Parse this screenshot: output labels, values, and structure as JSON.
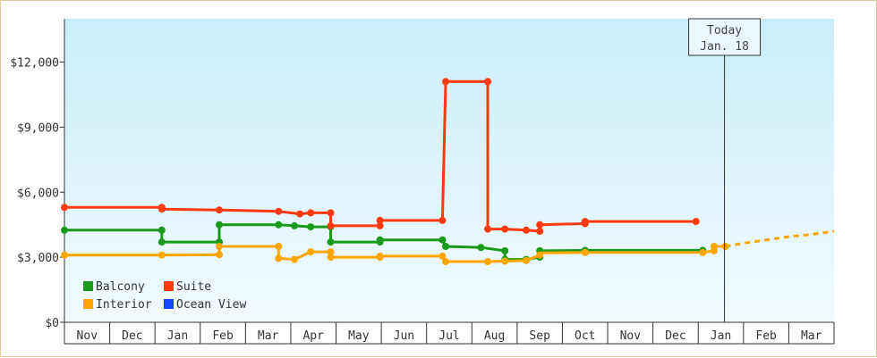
{
  "chart_data": {
    "type": "line",
    "title": "",
    "xlabel": "",
    "ylabel": "",
    "ylim": [
      0,
      14000
    ],
    "y_ticks": [
      {
        "value": 0,
        "label": "$0"
      },
      {
        "value": 3000,
        "label": "$3,000"
      },
      {
        "value": 6000,
        "label": "$6,000"
      },
      {
        "value": 9000,
        "label": "$9,000"
      },
      {
        "value": 12000,
        "label": "$12,000"
      }
    ],
    "x_unit": "months since Nov (first month on axis)",
    "months": [
      "Nov",
      "Dec",
      "Jan",
      "Feb",
      "Mar",
      "Apr",
      "May",
      "Jun",
      "Jul",
      "Aug",
      "Sep",
      "Oct",
      "Nov",
      "Dec",
      "Jan",
      "Feb",
      "Mar"
    ],
    "today": {
      "line1": "Today",
      "line2": "Jan. 18",
      "x": 14.58
    },
    "legend": {
      "placement": "bottom-left"
    },
    "series": [
      {
        "name": "Balcony",
        "color": "#1a9a1a",
        "points": [
          [
            0,
            4250
          ],
          [
            2.15,
            4250
          ],
          [
            2.15,
            3700
          ],
          [
            3.42,
            3700
          ],
          [
            3.42,
            4500
          ],
          [
            4.73,
            4500
          ],
          [
            5.08,
            4450
          ],
          [
            5.44,
            4400
          ],
          [
            5.88,
            4400
          ],
          [
            5.88,
            3700
          ],
          [
            6.97,
            3700
          ],
          [
            6.97,
            3800
          ],
          [
            8.35,
            3800
          ],
          [
            8.42,
            3500
          ],
          [
            9.2,
            3450
          ],
          [
            9.73,
            3300
          ],
          [
            9.73,
            2900
          ],
          [
            10.2,
            2900
          ],
          [
            10.5,
            3000
          ],
          [
            10.5,
            3300
          ],
          [
            11.5,
            3320
          ],
          [
            13.4,
            3320
          ],
          [
            14.1,
            3320
          ]
        ],
        "markers": [
          [
            0,
            4250
          ],
          [
            2.15,
            4250
          ],
          [
            2.15,
            3700
          ],
          [
            3.42,
            3700
          ],
          [
            3.42,
            4500
          ],
          [
            4.73,
            4500
          ],
          [
            5.08,
            4450
          ],
          [
            5.44,
            4400
          ],
          [
            5.88,
            4400
          ],
          [
            5.88,
            3700
          ],
          [
            6.97,
            3700
          ],
          [
            6.97,
            3800
          ],
          [
            8.35,
            3800
          ],
          [
            8.42,
            3500
          ],
          [
            9.2,
            3450
          ],
          [
            9.73,
            3300
          ],
          [
            9.73,
            2900
          ],
          [
            10.2,
            2900
          ],
          [
            10.5,
            3000
          ],
          [
            10.5,
            3300
          ],
          [
            11.5,
            3320
          ],
          [
            14.1,
            3320
          ]
        ]
      },
      {
        "name": "Suite",
        "color": "#ff3a10",
        "points": [
          [
            0,
            5300
          ],
          [
            2.15,
            5300
          ],
          [
            2.15,
            5220
          ],
          [
            3.42,
            5180
          ],
          [
            4.73,
            5120
          ],
          [
            5.2,
            5000
          ],
          [
            5.44,
            5050
          ],
          [
            5.88,
            5050
          ],
          [
            5.88,
            4450
          ],
          [
            6.97,
            4450
          ],
          [
            6.97,
            4700
          ],
          [
            8.35,
            4700
          ],
          [
            8.42,
            11100
          ],
          [
            9.35,
            11100
          ],
          [
            9.35,
            4300
          ],
          [
            9.73,
            4300
          ],
          [
            10.2,
            4250
          ],
          [
            10.5,
            4200
          ],
          [
            10.5,
            4500
          ],
          [
            11.5,
            4550
          ],
          [
            11.5,
            4650
          ],
          [
            13.95,
            4650
          ]
        ],
        "markers": [
          [
            0,
            5300
          ],
          [
            2.15,
            5300
          ],
          [
            2.15,
            5220
          ],
          [
            3.42,
            5180
          ],
          [
            4.73,
            5120
          ],
          [
            5.2,
            5000
          ],
          [
            5.44,
            5050
          ],
          [
            5.88,
            5050
          ],
          [
            5.88,
            4450
          ],
          [
            6.97,
            4450
          ],
          [
            6.97,
            4700
          ],
          [
            8.35,
            4700
          ],
          [
            8.42,
            11100
          ],
          [
            9.35,
            11100
          ],
          [
            9.35,
            4300
          ],
          [
            9.73,
            4300
          ],
          [
            10.2,
            4250
          ],
          [
            10.5,
            4200
          ],
          [
            10.5,
            4500
          ],
          [
            11.5,
            4550
          ],
          [
            11.5,
            4650
          ],
          [
            13.95,
            4650
          ]
        ]
      },
      {
        "name": "Interior",
        "color": "#ffa500",
        "points": [
          [
            0,
            3100
          ],
          [
            2.15,
            3100
          ],
          [
            3.42,
            3120
          ],
          [
            3.42,
            3500
          ],
          [
            4.73,
            3500
          ],
          [
            4.73,
            2950
          ],
          [
            5.08,
            2900
          ],
          [
            5.44,
            3250
          ],
          [
            5.88,
            3250
          ],
          [
            5.88,
            3000
          ],
          [
            6.97,
            3000
          ],
          [
            6.97,
            3050
          ],
          [
            8.35,
            3050
          ],
          [
            8.42,
            2800
          ],
          [
            9.35,
            2800
          ],
          [
            9.73,
            2820
          ],
          [
            10.2,
            2850
          ],
          [
            10.5,
            3100
          ],
          [
            10.5,
            3200
          ],
          [
            11.5,
            3220
          ],
          [
            14.1,
            3220
          ],
          [
            14.35,
            3300
          ],
          [
            14.35,
            3500
          ],
          [
            14.6,
            3500
          ]
        ],
        "markers": [
          [
            0,
            3100
          ],
          [
            2.15,
            3100
          ],
          [
            3.42,
            3120
          ],
          [
            3.42,
            3500
          ],
          [
            4.73,
            3500
          ],
          [
            4.73,
            2950
          ],
          [
            5.08,
            2900
          ],
          [
            5.44,
            3250
          ],
          [
            5.88,
            3250
          ],
          [
            5.88,
            3000
          ],
          [
            6.97,
            3000
          ],
          [
            6.97,
            3050
          ],
          [
            8.35,
            3050
          ],
          [
            8.42,
            2800
          ],
          [
            9.35,
            2800
          ],
          [
            9.73,
            2820
          ],
          [
            10.2,
            2850
          ],
          [
            10.5,
            3100
          ],
          [
            11.5,
            3220
          ],
          [
            14.1,
            3220
          ],
          [
            14.35,
            3300
          ],
          [
            14.35,
            3500
          ],
          [
            14.6,
            3500
          ]
        ],
        "projection": [
          [
            14.6,
            3500
          ],
          [
            15.0,
            3650
          ],
          [
            15.5,
            3800
          ],
          [
            16.0,
            3950
          ],
          [
            16.5,
            4050
          ],
          [
            17.0,
            4200
          ]
        ]
      },
      {
        "name": "Ocean View",
        "color": "#1446ff",
        "points": [],
        "markers": []
      }
    ]
  },
  "legend_items": [
    {
      "name": "Balcony",
      "color": "#1a9a1a"
    },
    {
      "name": "Suite",
      "color": "#ff3a10"
    },
    {
      "name": "Interior",
      "color": "#ffa500"
    },
    {
      "name": "Ocean View",
      "color": "#1446ff"
    }
  ]
}
